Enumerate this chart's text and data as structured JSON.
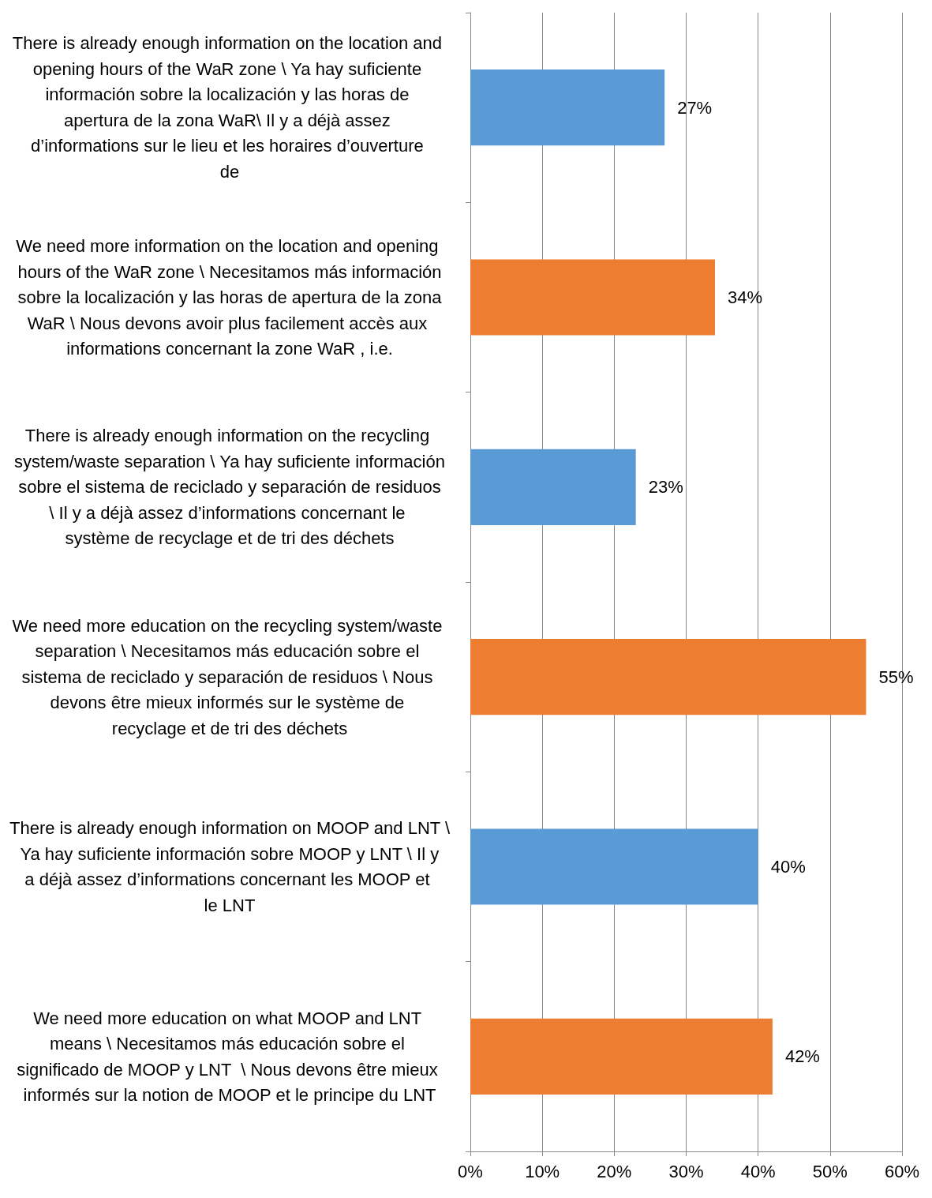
{
  "chart_data": {
    "type": "bar",
    "orientation": "horizontal",
    "categories": [
      "There is already enough information on the location and opening hours of the WaR zone \\ Ya hay suficiente información sobre la localización y las horas de apertura de la zona WaR\\ Il y a déjà assez d’informations sur le lieu et les horaires d’ouverture de",
      "We need more information on the location and opening hours of the WaR zone \\ Necesitamos más información sobre la localización y las horas de apertura de la zona WaR \\ Nous devons avoir plus facilement accès aux informations concernant la zone WaR , i.e.",
      "There is already enough information on the recycling system/waste separation \\ Ya hay suficiente información sobre el sistema de reciclado y separación de residuos \\ Il y a déjà assez d’informations concernant le système de recyclage et de tri des déchets",
      "We need more education on the recycling system/waste separation \\ Necesitamos más educación sobre el sistema de reciclado y separación de residuos \\ Nous devons être mieux informés sur le système de recyclage et de tri des déchets",
      "There is already enough information on MOOP and LNT \\ Ya hay suficiente información sobre MOOP y LNT \\ Il y a déjà assez d’informations concernant les MOOP et le LNT",
      "We need more education on what MOOP and LNT means \\ Necesitamos más educación sobre el significado de MOOP y LNT  \\ Nous devons être mieux informés sur la notion de MOOP et le principe du LNT"
    ],
    "values": [
      27,
      34,
      23,
      55,
      40,
      42
    ],
    "value_labels": [
      "27%",
      "34%",
      "23%",
      "55%",
      "40%",
      "42%"
    ],
    "colors": [
      "#5b9bd5",
      "#ed7d31",
      "#5b9bd5",
      "#ed7d31",
      "#5b9bd5",
      "#ed7d31"
    ],
    "xlim": [
      0,
      60
    ],
    "xticks": [
      {
        "value": 0,
        "label": "0%"
      },
      {
        "value": 10,
        "label": "10%"
      },
      {
        "value": 20,
        "label": "20%"
      },
      {
        "value": 30,
        "label": "30%"
      },
      {
        "value": 40,
        "label": "40%"
      },
      {
        "value": 50,
        "label": "50%"
      },
      {
        "value": 60,
        "label": "60%"
      }
    ],
    "grid": "x"
  }
}
